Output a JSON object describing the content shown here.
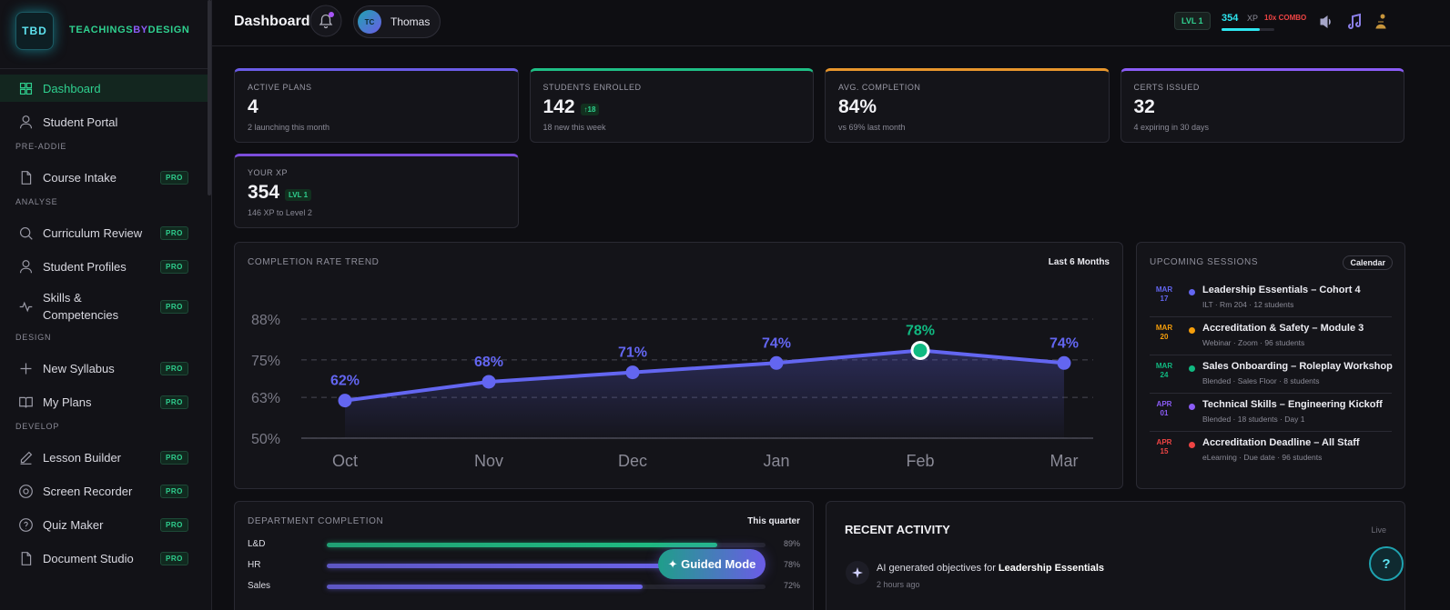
{
  "sidebar": {
    "logo": "TBD",
    "brand": [
      "TEACHINGS",
      "BY",
      "DESIGN"
    ],
    "nav": [
      {
        "label": "Dashboard",
        "active": true
      },
      {
        "label": "Student Portal"
      }
    ],
    "sections": [
      {
        "title": "PRE-ADDIE",
        "items": [
          {
            "label": "Course Intake",
            "badge": "PRO"
          }
        ]
      },
      {
        "title": "ANALYSE",
        "items": [
          {
            "label": "Curriculum Review",
            "badge": "PRO"
          },
          {
            "label": "Student Profiles",
            "badge": "PRO"
          },
          {
            "label": "Skills & Competencies",
            "badge": "PRO"
          }
        ]
      },
      {
        "title": "DESIGN",
        "items": [
          {
            "label": "New Syllabus",
            "badge": "PRO"
          },
          {
            "label": "My Plans",
            "badge": "PRO"
          }
        ]
      },
      {
        "title": "DEVELOP",
        "items": [
          {
            "label": "Lesson Builder",
            "badge": "PRO"
          },
          {
            "label": "Screen Recorder",
            "badge": "PRO"
          },
          {
            "label": "Quiz Maker",
            "badge": "PRO"
          },
          {
            "label": "Document Studio",
            "badge": "PRO"
          }
        ]
      }
    ]
  },
  "topbar": {
    "title": "Dashboard",
    "user": {
      "initials": "TC",
      "name": "Thomas"
    },
    "level": "LVL 1",
    "xp": 354,
    "xp_unit": "XP",
    "combo": "10x COMBO"
  },
  "stats": [
    {
      "label": "ACTIVE PLANS",
      "value": 4,
      "note": "2 launching this month",
      "color": "#6b5ce7"
    },
    {
      "label": "STUDENTS ENROLLED",
      "value": 142,
      "badge": "↑18",
      "note": "18 new this week",
      "color": "#1fbf85"
    },
    {
      "label": "AVG. COMPLETION",
      "value": "84%",
      "note": "vs 69% last month",
      "color": "#e8962c"
    },
    {
      "label": "CERTS ISSUED",
      "value": 32,
      "note": "4 expiring in 30 days",
      "color": "#8b5cf6"
    },
    {
      "label": "YOUR XP",
      "value": 354,
      "badge": "LVL 1",
      "note": "146 XP to Level 2",
      "color": "#7c4ddb"
    }
  ],
  "chart_data": {
    "type": "line",
    "title": "COMPLETION RATE TREND",
    "period": "Last 6 Months",
    "categories": [
      "Oct",
      "Nov",
      "Dec",
      "Jan",
      "Feb",
      "Mar"
    ],
    "values": [
      62,
      68,
      71,
      74,
      78,
      74
    ],
    "value_labels": [
      "62%",
      "68%",
      "71%",
      "74%",
      "78%",
      "74%"
    ],
    "color": "#6366f1",
    "highlight": 4,
    "highlight_color": "#10b981",
    "ylim": [
      50,
      88
    ],
    "yticks": [
      {
        "value": 88,
        "label": "88%"
      },
      {
        "value": 75,
        "label": "75%"
      },
      {
        "value": 63,
        "label": "63%"
      },
      {
        "value": 50,
        "label": "50%"
      }
    ],
    "grid": true
  },
  "sessions": {
    "title": "UPCOMING SESSIONS",
    "button": "Calendar",
    "items": [
      {
        "month": "MAR",
        "day": "17",
        "title": "Leadership Essentials – Cohort 4",
        "meta": "ILT · Rm 204 · 12 students",
        "color": "#6366f1"
      },
      {
        "month": "MAR",
        "day": "20",
        "title": "Accreditation & Safety – Module 3",
        "meta": "Webinar · Zoom · 96 students",
        "color": "#f59e0b"
      },
      {
        "month": "MAR",
        "day": "24",
        "title": "Sales Onboarding – Roleplay Workshop",
        "meta": "Blended · Sales Floor · 8 students",
        "color": "#10b981"
      },
      {
        "month": "APR",
        "day": "01",
        "title": "Technical Skills – Engineering Kickoff",
        "meta": "Blended · 18 students · Day 1",
        "color": "#8b5cf6"
      },
      {
        "month": "APR",
        "day": "15",
        "title": "Accreditation Deadline – All Staff",
        "meta": "eLearning · Due date · 96 students",
        "color": "#ef4444"
      }
    ]
  },
  "departments": {
    "title": "DEPARTMENT COMPLETION",
    "period": "This quarter",
    "rows": [
      {
        "name": "L&D",
        "value": 89,
        "label": "89%",
        "color": "#1fbf85"
      },
      {
        "name": "HR",
        "value": 78,
        "label": "78%",
        "color": "#6b63e8"
      },
      {
        "name": "Sales",
        "value": 72,
        "label": "72%",
        "color": "#6b63e8"
      }
    ]
  },
  "activity": {
    "title": "RECENT ACTIVITY",
    "status": "Live",
    "items": [
      {
        "text": "AI generated objectives for",
        "subject": "Leadership Essentials",
        "time": "2 hours ago"
      }
    ]
  },
  "guided": "✦ Guided Mode",
  "help": "?"
}
